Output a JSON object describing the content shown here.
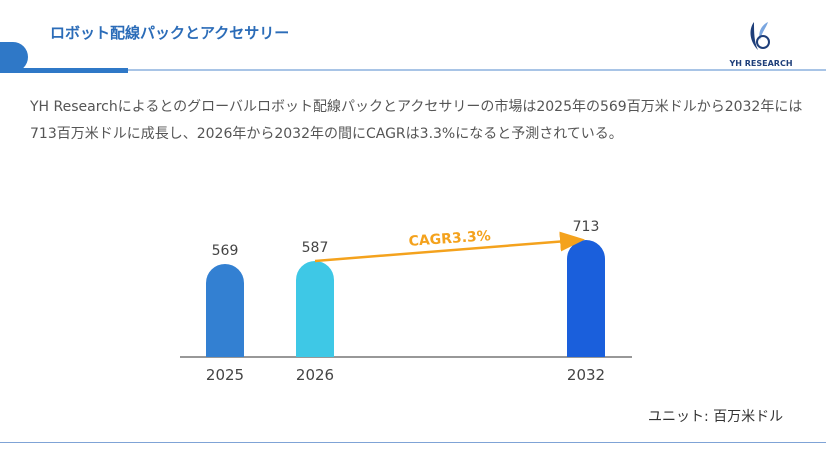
{
  "header": {
    "title": "ロボット配線パックとアクセサリー",
    "logo_text": "YH RESEARCH"
  },
  "description": "YH Researchによるとのグローバルロボット配線パックとアクセサリーの市場は2025年の569百万米ドルから2032年には713百万米ドルに成長し、2026年から2032年の間にCAGRは3.3%になると予測されている。",
  "unit_label": "ユニット: 百万米ドル",
  "chart_data": {
    "type": "bar",
    "categories": [
      "2025",
      "2026",
      "2032"
    ],
    "values": [
      569,
      587,
      713
    ],
    "colors": [
      "#3380d2",
      "#3ec8e6",
      "#1a5fdc"
    ],
    "annotation": {
      "text": "CAGR3.3%",
      "from": "2026",
      "to": "2032",
      "color": "#f4a21d"
    }
  }
}
